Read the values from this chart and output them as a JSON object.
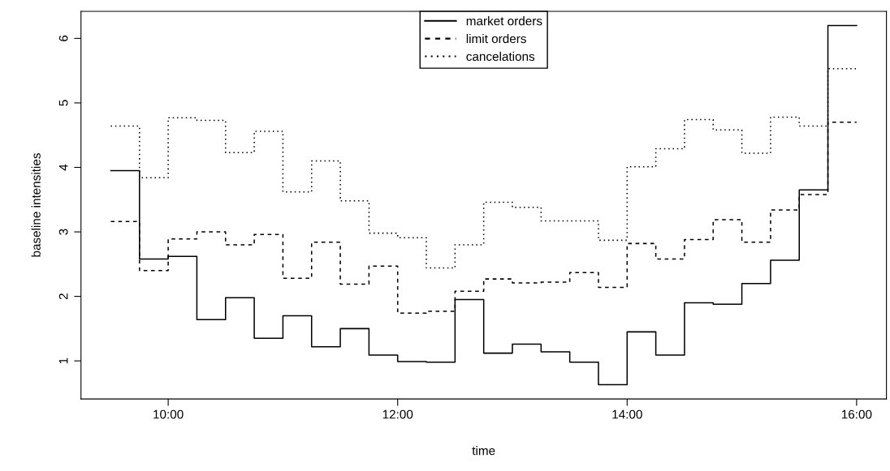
{
  "chart_data": {
    "type": "step",
    "xlabel": "time",
    "ylabel": "baseline intensities",
    "x": [
      9.5,
      9.75,
      10,
      10.25,
      10.5,
      10.75,
      11,
      11.25,
      11.5,
      11.75,
      12,
      12.25,
      12.5,
      12.75,
      13,
      13.25,
      13.5,
      13.75,
      14,
      14.25,
      14.5,
      14.75,
      15,
      15.25,
      15.5,
      15.75,
      16
    ],
    "series": [
      {
        "name": "market orders",
        "color": "#000000",
        "line_style": "solid",
        "values": [
          3.95,
          2.58,
          2.62,
          1.64,
          1.98,
          1.35,
          1.7,
          1.22,
          1.5,
          1.09,
          0.99,
          0.98,
          1.95,
          1.12,
          1.26,
          1.14,
          0.98,
          0.63,
          1.45,
          1.09,
          1.9,
          1.88,
          2.2,
          2.56,
          3.65,
          6.2,
          6.2
        ]
      },
      {
        "name": "limit orders",
        "color": "#000000",
        "line_style": "dashed",
        "values": [
          3.16,
          2.4,
          2.89,
          3.0,
          2.8,
          2.96,
          2.28,
          2.84,
          2.19,
          2.47,
          1.74,
          1.77,
          2.08,
          2.27,
          2.21,
          2.22,
          2.37,
          2.14,
          2.82,
          2.58,
          2.88,
          3.19,
          2.84,
          3.34,
          3.58,
          4.7,
          4.7
        ]
      },
      {
        "name": "cancelations",
        "color": "#000000",
        "line_style": "dotted",
        "values": [
          4.64,
          3.84,
          4.77,
          4.73,
          4.23,
          4.56,
          3.62,
          4.1,
          3.48,
          2.98,
          2.91,
          2.44,
          2.8,
          3.46,
          3.38,
          3.17,
          3.17,
          2.87,
          4.01,
          4.29,
          4.74,
          4.58,
          4.22,
          4.78,
          4.64,
          5.53,
          5.53
        ]
      }
    ],
    "xlim": [
      9.24,
      16.26
    ],
    "xticks": [
      {
        "value": 10,
        "label": "10:00"
      },
      {
        "value": 12,
        "label": "12:00"
      },
      {
        "value": 14,
        "label": "14:00"
      },
      {
        "value": 16,
        "label": "16:00"
      }
    ],
    "ylim": [
      0.41,
      6.42
    ],
    "yticks": [
      1,
      2,
      3,
      4,
      5,
      6
    ],
    "grid": false,
    "legend": "top",
    "marker": "none"
  }
}
